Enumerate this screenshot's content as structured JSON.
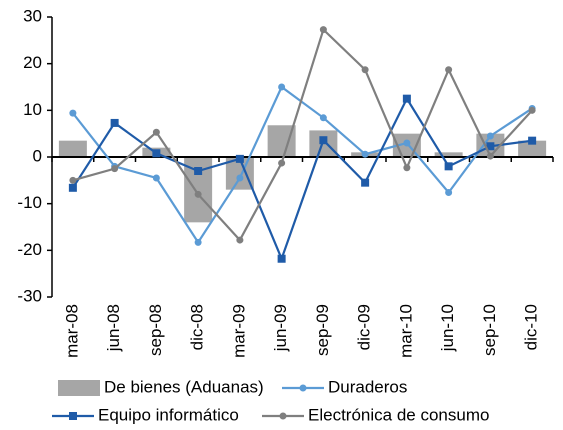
{
  "chart_data": {
    "type": "combo",
    "categories": [
      "mar-08",
      "jun-08",
      "sep-08",
      "dic-08",
      "mar-09",
      "jun-09",
      "sep-09",
      "dic-09",
      "mar-10",
      "jun-10",
      "sep-10",
      "dic-10"
    ],
    "series": [
      {
        "name": "De bienes (Aduanas)",
        "type": "bar",
        "color": "#a6a6a6",
        "values": [
          3.5,
          0,
          2,
          -14,
          -7,
          6.8,
          5.7,
          1,
          5,
          1,
          5,
          3.5
        ]
      },
      {
        "name": "Duraderos",
        "type": "line",
        "marker": "circle",
        "color": "#5b9bd5",
        "values": [
          9.4,
          -2,
          -4.5,
          -18.3,
          -4.5,
          15,
          8.4,
          0.6,
          3,
          -7.6,
          4.5,
          10.4
        ]
      },
      {
        "name": "Equipo informático",
        "type": "line",
        "marker": "square",
        "color": "#1f5ba8",
        "values": [
          -6.6,
          7.3,
          0.8,
          -3,
          -0.4,
          -21.8,
          3.6,
          -5.5,
          12.5,
          -2,
          2.3,
          3.5
        ]
      },
      {
        "name": "Electrónica de consumo",
        "type": "line",
        "marker": "circle",
        "color": "#7f7f7f",
        "values": [
          -5,
          -2.5,
          5.3,
          -8,
          -17.8,
          -1.3,
          27.3,
          18.7,
          -2.3,
          18.7,
          0.2,
          10
        ]
      }
    ],
    "ylim": [
      -30,
      30
    ],
    "yticks": [
      -30,
      -20,
      -10,
      0,
      10,
      20,
      30
    ],
    "grid": false
  }
}
